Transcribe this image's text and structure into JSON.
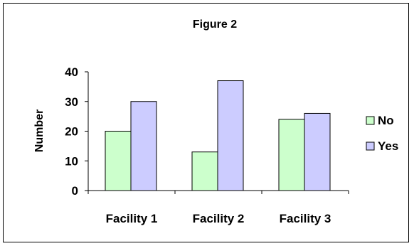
{
  "chart_data": {
    "type": "bar",
    "title": "Figure 2",
    "xlabel": "",
    "ylabel": "Number",
    "categories": [
      "Facility 1",
      "Facility 2",
      "Facility 3"
    ],
    "series": [
      {
        "name": "No",
        "values": [
          20,
          13,
          24
        ],
        "color": "#ccffcc"
      },
      {
        "name": "Yes",
        "values": [
          30,
          37,
          26
        ],
        "color": "#ccccff"
      }
    ],
    "ylim": [
      0,
      40
    ],
    "yticks": [
      0,
      10,
      20,
      30,
      40
    ],
    "grid": false,
    "legend_position": "right"
  }
}
